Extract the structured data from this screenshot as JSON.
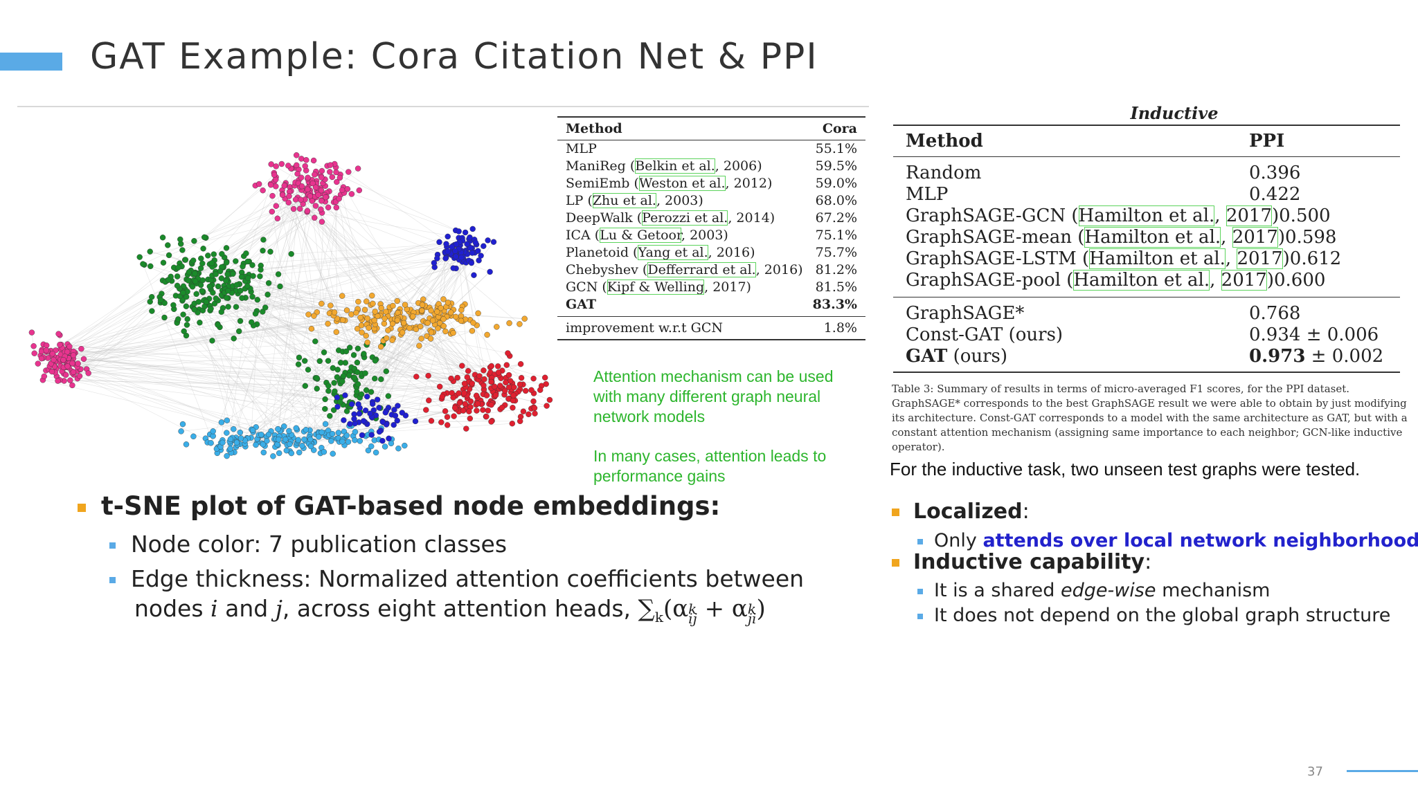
{
  "slide": {
    "title": "GAT Example: Cora Citation Net & PPI",
    "page_number": "37"
  },
  "cora_table": {
    "headers": [
      "Method",
      "Cora"
    ],
    "rows": [
      {
        "method": "MLP",
        "cite": "",
        "cite_suffix": "",
        "value": "55.1%"
      },
      {
        "method": "ManiReg (",
        "cite": "Belkin et al.",
        "cite_suffix": ", 2006)",
        "value": "59.5%"
      },
      {
        "method": "SemiEmb (",
        "cite": "Weston et al.",
        "cite_suffix": ", 2012)",
        "value": "59.0%"
      },
      {
        "method": "LP (",
        "cite": "Zhu et al.",
        "cite_suffix": ", 2003)",
        "value": "68.0%"
      },
      {
        "method": "DeepWalk (",
        "cite": "Perozzi et al.",
        "cite_suffix": ", 2014)",
        "value": "67.2%"
      },
      {
        "method": "ICA (",
        "cite": "Lu & Getoor",
        "cite_suffix": ", 2003)",
        "value": "75.1%"
      },
      {
        "method": "Planetoid (",
        "cite": "Yang et al.",
        "cite_suffix": ", 2016)",
        "value": "75.7%"
      },
      {
        "method": "Chebyshev (",
        "cite": "Defferrard et al.",
        "cite_suffix": ", 2016)",
        "value": "81.2%"
      },
      {
        "method": "GCN (",
        "cite": "Kipf & Welling",
        "cite_suffix": ", 2017)",
        "value": "81.5%"
      }
    ],
    "gat_row": {
      "method": "GAT",
      "value": "83.3%"
    },
    "improvement_row": {
      "method": "improvement w.r.t GCN",
      "value": "1.8%"
    }
  },
  "green_notes": {
    "note1": [
      "Attention mechanism can be used",
      "with many different graph neural",
      "network models"
    ],
    "note2": [
      "In many cases, attention leads to",
      "performance gains"
    ]
  },
  "left_bullets": {
    "main": "t-SNE plot of GAT-based node embeddings:",
    "sub1": "Node color: 7 publication classes",
    "sub2_line1": "Edge thickness: Normalized attention coefficients between",
    "sub2_line2a": "nodes ",
    "sub2_i": "i",
    "sub2_and": " and ",
    "sub2_j": "j",
    "sub2_line2b": ", across eight attention heads, ",
    "formula": "∑k(αkij + αkji)"
  },
  "ppi_table": {
    "caption": "Inductive",
    "headers": [
      "Method",
      "PPI"
    ],
    "group1": [
      {
        "method": "Random",
        "value": "0.396"
      },
      {
        "method": "MLP",
        "value": "0.422"
      },
      {
        "method": "GraphSAGE-GCN (",
        "cite": "Hamilton et al.",
        "cite_suffix": ", ",
        "cite_year": "2017",
        "close": ")",
        "value": "0.500"
      },
      {
        "method": "GraphSAGE-mean (",
        "cite": "Hamilton et al.",
        "cite_suffix": ", ",
        "cite_year": "2017",
        "close": ")",
        "value": "0.598"
      },
      {
        "method": "GraphSAGE-LSTM (",
        "cite": "Hamilton et al.",
        "cite_suffix": ", ",
        "cite_year": "2017",
        "close": ")",
        "value": "0.612"
      },
      {
        "method": "GraphSAGE-pool (",
        "cite": "Hamilton et al.",
        "cite_suffix": ", ",
        "cite_year": "2017",
        "close": ")",
        "value": "0.600"
      }
    ],
    "group2": [
      {
        "method": "GraphSAGE*",
        "value": "0.768"
      },
      {
        "method": "Const-GAT (ours)",
        "value": "0.934 ± 0.006"
      }
    ],
    "gat_row": {
      "method_bold": "GAT",
      "method_rest": " (ours)",
      "value_bold": "0.973",
      "value_rest": " ± 0.002"
    }
  },
  "ppi_caption": "Table 3: Summary of results in terms of micro-averaged F1 scores, for the PPI dataset. GraphSAGE* corresponds to the best GraphSAGE result we were able to obtain by just modifying its architecture. Const-GAT corresponds to a model with the same architecture as GAT, but with a constant attention mechanism (assigning same importance to each neighbor; GCN-like inductive operator).",
  "inductive_note": "For the inductive task, two unseen test graphs were tested.",
  "right_bullets": {
    "localized": "Localized",
    "localized_colon": ":",
    "localized_sub_pre": "Only ",
    "localized_sub_blue": "attends over local network neighborhoods",
    "inductive": "Inductive capability",
    "inductive_colon": ":",
    "ind_sub1_pre": "It is a shared ",
    "ind_sub1_italic": "edge-wise",
    "ind_sub1_post": " mechanism",
    "ind_sub2": "It does not depend on the global graph structure"
  },
  "colors": {
    "accent": "#5aaae6",
    "bullet_orange": "#f0a51e",
    "note_green": "#2db52d",
    "cite_box_green": "#5bd35b",
    "link_blue": "#2222cc",
    "tsne_classes": [
      "#e8348f",
      "#1a8a2a",
      "#f2a830",
      "#e02030",
      "#3aaee8",
      "#2020d0",
      "#c8c8c8"
    ]
  }
}
